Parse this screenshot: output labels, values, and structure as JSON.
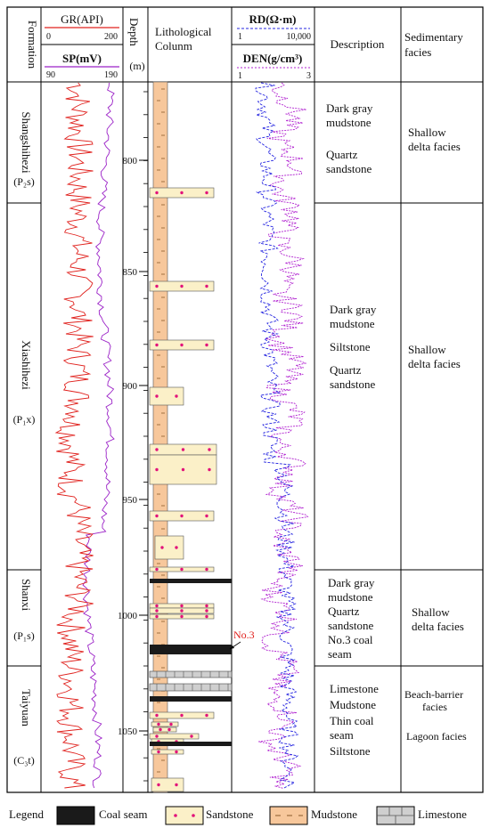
{
  "header": {
    "formation": "Formation",
    "gr_label": "GR(API)",
    "gr_min": "0",
    "gr_max": "200",
    "sp_label": "SP(mV)",
    "sp_min": "90",
    "sp_max": "190",
    "depth_label": "Depth",
    "depth_unit": "(m)",
    "lith_label_1": "Lithological",
    "lith_label_2": "Colunm",
    "rd_label": "RD(Ω·m)",
    "rd_min": "1",
    "rd_max": "10,000",
    "den_label": "DEN(g/cm³)",
    "den_min": "1",
    "den_max": "3",
    "description": "Description",
    "facies_1": "Sedimentary",
    "facies_2": "facies"
  },
  "depth_ticks": [
    "800",
    "850",
    "900",
    "950",
    "1000",
    "1050"
  ],
  "formations": [
    {
      "name": "Shangshihezi",
      "code": "(P₂s)"
    },
    {
      "name": "Xiashihezi",
      "code": "(P₁x)"
    },
    {
      "name": "Shanxi",
      "code": "(P₁s)"
    },
    {
      "name": "Taiyuan",
      "code": "(C₃t)"
    }
  ],
  "descriptions": [
    [
      "Dark gray",
      "mudstone",
      "",
      "Quartz",
      "sandstone"
    ],
    [
      "Dark gray",
      "mudstone",
      "",
      "Siltstone",
      "",
      "Quartz",
      "sandstone"
    ],
    [
      "Dark gray",
      "mudstone",
      "Quartz",
      "sandstone",
      "No.3 coal",
      "seam"
    ],
    [
      "Limestone",
      "Mudstone",
      "Thin coal",
      "seam",
      "Siltstone"
    ]
  ],
  "facies": [
    [
      "Shallow",
      "delta facies"
    ],
    [
      "Shallow",
      "delta facies"
    ],
    [
      "Shallow",
      "delta facies"
    ],
    [
      "Beach-barrier",
      "facies",
      "",
      "Lagoon facies"
    ]
  ],
  "coal_annotation": "No.3",
  "legend": {
    "title": "Legend",
    "items": [
      "Coal seam",
      "Sandstone",
      "Mudstone",
      "Limestone"
    ]
  },
  "colors": {
    "gr": "#e0201c",
    "sp": "#9b22c7",
    "rd": "#2424e0",
    "den": "#b020d0",
    "mudstone": "#f7c79b",
    "sandstone": "#fbf0c8",
    "dot": "#e2137a",
    "coal": "#1a1a1a",
    "limestone": "#cfcfcf"
  }
}
